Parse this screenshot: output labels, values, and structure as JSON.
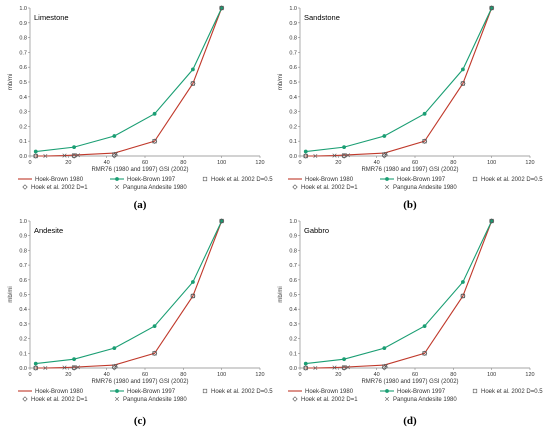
{
  "chart_data": [
    {
      "type": "line",
      "panel_label": "(a)",
      "title": "Limestone",
      "xlabel": "RMR76 (1980 and 1997) GSI (2002)",
      "ylabel": "mb/mi",
      "xlim": [
        0,
        120
      ],
      "ylim": [
        0,
        1.0
      ],
      "xticks": [
        0,
        20,
        40,
        60,
        80,
        100,
        120
      ],
      "yticks": [
        0,
        0.1,
        0.2,
        0.3,
        0.4,
        0.5,
        0.6,
        0.7,
        0.8,
        0.9,
        1.0
      ],
      "series": [
        {
          "name": "Hoek-Brown 1980",
          "marker": "none",
          "color": "#c0392b",
          "x": [
            3,
            8,
            18,
            23,
            44,
            65,
            85,
            100
          ],
          "y": [
            0.0,
            0.0,
            0.003,
            0.006,
            0.02,
            0.1,
            0.49,
            1.0
          ]
        },
        {
          "name": "Hoek-Brown 1997",
          "marker": "dot",
          "color": "#1a9e73",
          "x": [
            3,
            23,
            44,
            65,
            85,
            100
          ],
          "y": [
            0.03,
            0.06,
            0.135,
            0.285,
            0.585,
            1.0
          ]
        },
        {
          "name": "Hoek et al. 2002 D=0.5",
          "marker": "square",
          "color": "#555555",
          "x": [
            3,
            23,
            44,
            65,
            85,
            100
          ],
          "y": [
            0.0,
            0.003,
            0.01,
            0.1,
            0.49,
            1.0
          ]
        },
        {
          "name": "Hoek et al. 2002 D=1",
          "marker": "diamond",
          "color": "#555555",
          "x": [
            3,
            23,
            44,
            65,
            85,
            100
          ],
          "y": [
            0.0,
            0.0,
            0.002,
            0.1,
            0.49,
            1.0
          ]
        },
        {
          "name": "Panguna Andesite 1980",
          "marker": "cross",
          "color": "#555555",
          "x": [
            8,
            18,
            25,
            45
          ],
          "y": [
            0.0,
            0.003,
            0.005,
            0.015
          ]
        }
      ]
    },
    {
      "type": "line",
      "panel_label": "(b)",
      "title": "Sandstone",
      "xlabel": "RMR76 (1980 and 1997) GSI (2002)",
      "ylabel": "mb/mi",
      "xlim": [
        0,
        120
      ],
      "ylim": [
        0,
        1.0
      ],
      "xticks": [
        0,
        20,
        40,
        60,
        80,
        100,
        120
      ],
      "yticks": [
        0,
        0.1,
        0.2,
        0.3,
        0.4,
        0.5,
        0.6,
        0.7,
        0.8,
        0.9,
        1.0
      ],
      "series": [
        {
          "name": "Hoek-Brown 1980",
          "marker": "none",
          "color": "#c0392b",
          "x": [
            3,
            8,
            18,
            23,
            44,
            65,
            85,
            100
          ],
          "y": [
            0.0,
            0.0,
            0.003,
            0.006,
            0.02,
            0.1,
            0.49,
            1.0
          ]
        },
        {
          "name": "Hoek-Brown 1997",
          "marker": "dot",
          "color": "#1a9e73",
          "x": [
            3,
            23,
            44,
            65,
            85,
            100
          ],
          "y": [
            0.03,
            0.06,
            0.135,
            0.285,
            0.585,
            1.0
          ]
        },
        {
          "name": "Hoek et al. 2002 D=0.5",
          "marker": "square",
          "color": "#555555",
          "x": [
            3,
            23,
            44,
            65,
            85,
            100
          ],
          "y": [
            0.0,
            0.003,
            0.01,
            0.1,
            0.49,
            1.0
          ]
        },
        {
          "name": "Hoek et al. 2002 D=1",
          "marker": "diamond",
          "color": "#555555",
          "x": [
            3,
            23,
            44,
            65,
            85,
            100
          ],
          "y": [
            0.0,
            0.0,
            0.002,
            0.1,
            0.49,
            1.0
          ]
        },
        {
          "name": "Panguna Andesite 1980",
          "marker": "cross",
          "color": "#555555",
          "x": [
            8,
            18,
            25,
            45
          ],
          "y": [
            0.0,
            0.003,
            0.005,
            0.015
          ]
        }
      ]
    },
    {
      "type": "line",
      "panel_label": "(c)",
      "title": "Andesite",
      "xlabel": "RMR76 (1980 and 1997) GSI (2002)",
      "ylabel": "mb/mi",
      "xlim": [
        0,
        120
      ],
      "ylim": [
        0,
        1.0
      ],
      "xticks": [
        0,
        20,
        40,
        60,
        80,
        100,
        120
      ],
      "yticks": [
        0,
        0.1,
        0.2,
        0.3,
        0.4,
        0.5,
        0.6,
        0.7,
        0.8,
        0.9,
        1.0
      ],
      "series": [
        {
          "name": "Hoek-Brown 1980",
          "marker": "none",
          "color": "#c0392b",
          "x": [
            3,
            8,
            18,
            23,
            44,
            65,
            85,
            100
          ],
          "y": [
            0.0,
            0.0,
            0.003,
            0.006,
            0.02,
            0.1,
            0.49,
            1.0
          ]
        },
        {
          "name": "Hoek-Brown 1997",
          "marker": "dot",
          "color": "#1a9e73",
          "x": [
            3,
            23,
            44,
            65,
            85,
            100
          ],
          "y": [
            0.03,
            0.06,
            0.135,
            0.285,
            0.585,
            1.0
          ]
        },
        {
          "name": "Hoek et al. 2002 D=0.5",
          "marker": "square",
          "color": "#555555",
          "x": [
            3,
            23,
            44,
            65,
            85,
            100
          ],
          "y": [
            0.0,
            0.003,
            0.01,
            0.1,
            0.49,
            1.0
          ]
        },
        {
          "name": "Hoek et al. 2002 D=1",
          "marker": "diamond",
          "color": "#555555",
          "x": [
            3,
            23,
            44,
            65,
            85,
            100
          ],
          "y": [
            0.0,
            0.0,
            0.002,
            0.1,
            0.49,
            1.0
          ]
        },
        {
          "name": "Panguna Andesite 1980",
          "marker": "cross",
          "color": "#555555",
          "x": [
            8,
            18,
            25,
            45
          ],
          "y": [
            0.0,
            0.003,
            0.005,
            0.015
          ]
        }
      ]
    },
    {
      "type": "line",
      "panel_label": "(d)",
      "title": "Gabbro",
      "xlabel": "RMR76 (1980 and 1997) GSI (2002)",
      "ylabel": "mb/mi",
      "xlim": [
        0,
        120
      ],
      "ylim": [
        0,
        1.0
      ],
      "xticks": [
        0,
        20,
        40,
        60,
        80,
        100,
        120
      ],
      "yticks": [
        0,
        0.1,
        0.2,
        0.3,
        0.4,
        0.5,
        0.6,
        0.7,
        0.8,
        0.9,
        1.0
      ],
      "series": [
        {
          "name": "Hoek-Brown 1980",
          "marker": "none",
          "color": "#c0392b",
          "x": [
            3,
            8,
            18,
            23,
            44,
            65,
            85,
            100
          ],
          "y": [
            0.0,
            0.0,
            0.003,
            0.006,
            0.02,
            0.1,
            0.49,
            1.0
          ]
        },
        {
          "name": "Hoek-Brown 1997",
          "marker": "dot",
          "color": "#1a9e73",
          "x": [
            3,
            23,
            44,
            65,
            85,
            100
          ],
          "y": [
            0.03,
            0.06,
            0.135,
            0.285,
            0.585,
            1.0
          ]
        },
        {
          "name": "Hoek et al. 2002 D=0.5",
          "marker": "square",
          "color": "#555555",
          "x": [
            3,
            23,
            44,
            65,
            85,
            100
          ],
          "y": [
            0.0,
            0.003,
            0.01,
            0.1,
            0.49,
            1.0
          ]
        },
        {
          "name": "Hoek et al. 2002 D=1",
          "marker": "diamond",
          "color": "#555555",
          "x": [
            3,
            23,
            44,
            65,
            85,
            100
          ],
          "y": [
            0.0,
            0.0,
            0.002,
            0.1,
            0.49,
            1.0
          ]
        },
        {
          "name": "Panguna Andesite 1980",
          "marker": "cross",
          "color": "#555555",
          "x": [
            8,
            18,
            25,
            45
          ],
          "y": [
            0.0,
            0.003,
            0.005,
            0.015
          ]
        }
      ]
    }
  ]
}
